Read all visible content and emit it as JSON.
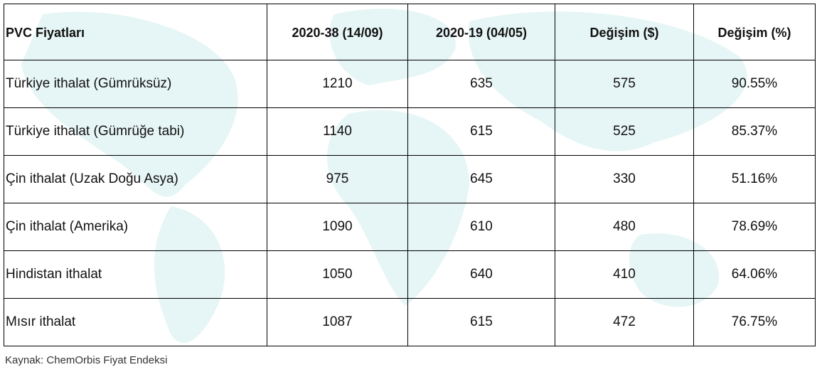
{
  "table": {
    "header": [
      "PVC Fiyatları",
      "2020-38 (14/09)",
      "2020-19 (04/05)",
      "Değişim ($)",
      "Değişim (%)"
    ],
    "rows": [
      [
        "Türkiye ithalat (Gümrüksüz)",
        "1210",
        "635",
        "575",
        "90.55%"
      ],
      [
        "Türkiye ithalat (Gümrüğe tabi)",
        "1140",
        "615",
        "525",
        "85.37%"
      ],
      [
        "Çin ithalat (Uzak Doğu Asya)",
        "975",
        "645",
        "330",
        "51.16%"
      ],
      [
        "Çin ithalat (Amerika)",
        "1090",
        "610",
        "480",
        "78.69%"
      ],
      [
        "Hindistan ithalat",
        "1050",
        "640",
        "410",
        "64.06%"
      ],
      [
        "Mısır ithalat",
        "1087",
        "615",
        "472",
        "76.75%"
      ]
    ]
  },
  "source": "Kaynak: ChemOrbis Fiyat Endeksi"
}
